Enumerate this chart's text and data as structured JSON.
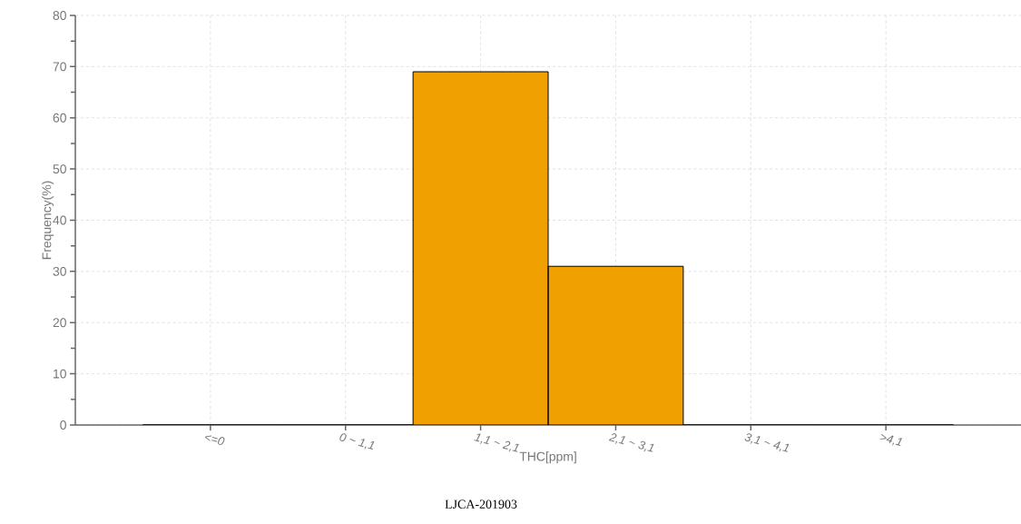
{
  "chart_data": {
    "type": "bar",
    "categories": [
      "<=0",
      "0 ~ 1,1",
      "1,1 ~ 2,1",
      "2,1 ~ 3,1",
      "3,1 ~ 4,1",
      ">4,1"
    ],
    "values": [
      0,
      0,
      69,
      31,
      0,
      0
    ],
    "color": "#f0a000",
    "xlabel": "THC[ppm]",
    "ylabel": "Frequency(%)",
    "ylim": [
      0,
      80
    ],
    "yticks": [
      0,
      10,
      20,
      30,
      40,
      50,
      60,
      70,
      80
    ],
    "grid": true,
    "annotations": [
      "LJCA-201903"
    ]
  }
}
